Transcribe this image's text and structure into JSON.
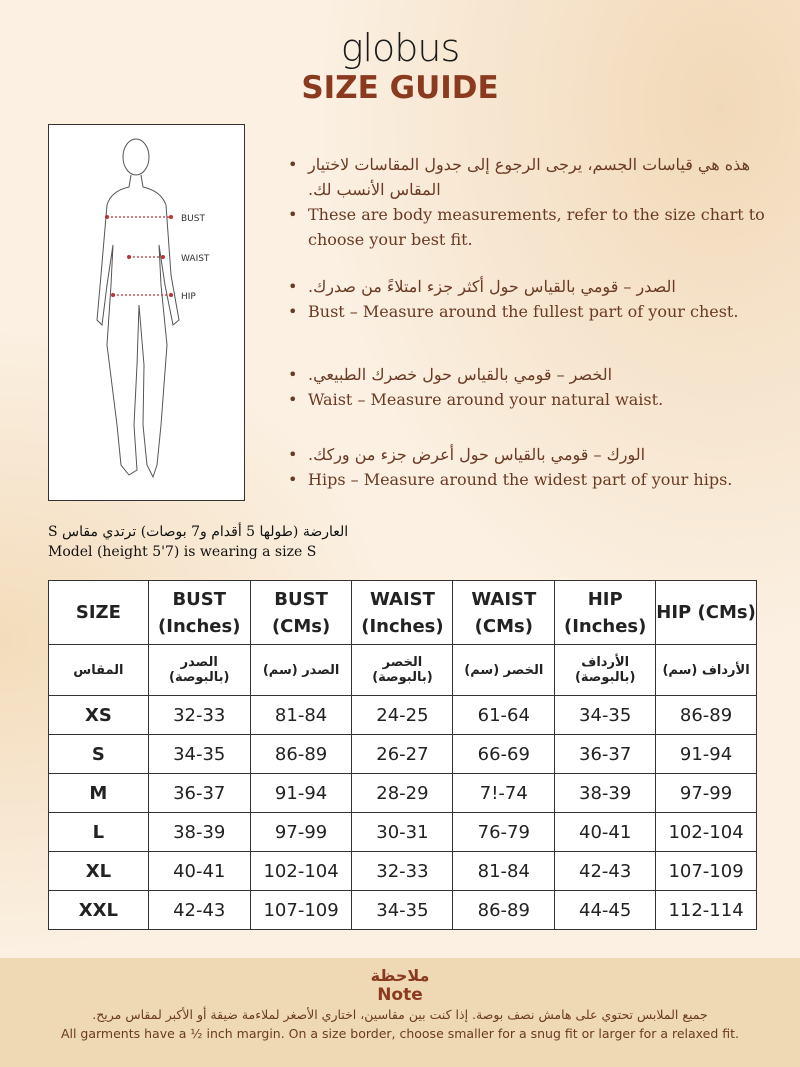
{
  "brand": "globus",
  "title": "SIZE GUIDE",
  "figure": {
    "labels": [
      "BUST",
      "WAIST",
      "HIP"
    ]
  },
  "bullets": [
    {
      "ar": "هذه هي قياسات الجسم، يرجى الرجوع إلى جدول المقاسات لاختيار المقاس الأنسب لك.",
      "en": "These are body measurements, refer to the size chart to choose your best fit."
    },
    {
      "ar": "الصدر – قومي بالقياس حول أكثر جزء امتلاءً من صدرك.",
      "en": "Bust – Measure around the fullest part of your chest."
    },
    {
      "ar": "الخصر – قومي بالقياس حول خصرك الطبيعي.",
      "en": "Waist – Measure around your natural waist."
    },
    {
      "ar": "الورك – قومي بالقياس حول أعرض جزء من وركك.",
      "en": "Hips – Measure around the widest part of your hips."
    }
  ],
  "model": {
    "ar": "العارضة (طولها 5 أقدام و7 بوصات) ترتدي مقاس S",
    "en": "Model (height 5'7) is wearing a size S"
  },
  "table": {
    "headers": [
      "SIZE",
      "BUST (Inches)",
      "BUST (CMs)",
      "WAIST (Inches)",
      "WAIST (CMs)",
      "HIP (Inches)",
      "HIP (CMs)"
    ],
    "headers_ar": [
      "المقاس",
      "الصدر (بالبوصة)",
      "الصدر (سم)",
      "الخصر (بالبوصة)",
      "الخصر (سم)",
      "الأرداف (بالبوصة)",
      "الأرداف (سم)"
    ],
    "rows": [
      [
        "XS",
        "32-33",
        "81-84",
        "24-25",
        "61-64",
        "34-35",
        "86-89"
      ],
      [
        "S",
        "34-35",
        "86-89",
        "26-27",
        "66-69",
        "36-37",
        "91-94"
      ],
      [
        "M",
        "36-37",
        "91-94",
        "28-29",
        "7!-74",
        "38-39",
        "97-99"
      ],
      [
        "L",
        "38-39",
        "97-99",
        "30-31",
        "76-79",
        "40-41",
        "102-104"
      ],
      [
        "XL",
        "40-41",
        "102-104",
        "32-33",
        "81-84",
        "42-43",
        "107-109"
      ],
      [
        "XXL",
        "42-43",
        "107-109",
        "34-35",
        "86-89",
        "44-45",
        "112-114"
      ]
    ]
  },
  "note": {
    "title_ar": "ملاحظة",
    "title_en": "Note",
    "text_ar": "جميع الملابس تحتوي على هامش نصف بوصة. إذا كنت بين مقاسين، اختاري الأصغر لملاءمة ضيقة أو الأكبر لمقاس مريح.",
    "text_en": "All garments have a ½ inch margin. On a size border, choose smaller for a snug fit or larger for a relaxed fit."
  }
}
